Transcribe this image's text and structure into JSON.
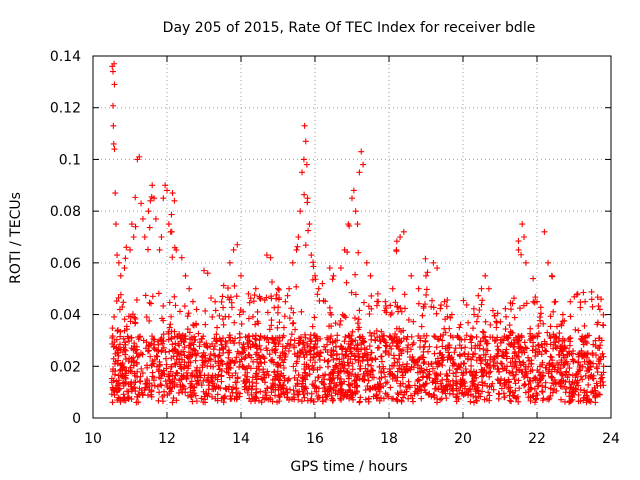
{
  "chart_data": {
    "type": "scatter",
    "title": "Day 205 of 2015, Rate Of TEC Index for receiver bdle",
    "xlabel": "GPS time / hours",
    "ylabel": "ROTI / TECUs",
    "xlim": [
      10,
      24
    ],
    "ylim": [
      0,
      0.14
    ],
    "x_ticks": [
      "10",
      "12",
      "14",
      "16",
      "18",
      "20",
      "22",
      "24"
    ],
    "y_ticks": [
      "0",
      "0.02",
      "0.04",
      "0.06",
      "0.08",
      "0.1",
      "0.12",
      "0.14"
    ],
    "grid": true,
    "marker": "plus",
    "color": "#ff0000",
    "data_range_x": [
      10.5,
      23.8
    ],
    "series": [
      {
        "points": [
          [
            10.52,
            0.136
          ],
          [
            10.54,
            0.134
          ],
          [
            10.57,
            0.137
          ],
          [
            10.58,
            0.129
          ],
          [
            10.55,
            0.113
          ],
          [
            10.56,
            0.106
          ],
          [
            10.58,
            0.104
          ],
          [
            10.6,
            0.087
          ],
          [
            10.62,
            0.075
          ],
          [
            10.65,
            0.063
          ],
          [
            10.7,
            0.06
          ],
          [
            10.75,
            0.055
          ],
          [
            10.85,
            0.058
          ],
          [
            10.9,
            0.066
          ],
          [
            11.0,
            0.065
          ],
          [
            11.05,
            0.075
          ],
          [
            11.1,
            0.07
          ],
          [
            11.15,
            0.074
          ],
          [
            11.2,
            0.1
          ],
          [
            11.25,
            0.101
          ],
          [
            11.3,
            0.083
          ],
          [
            11.35,
            0.077
          ],
          [
            11.4,
            0.07
          ],
          [
            11.5,
            0.08
          ],
          [
            11.55,
            0.084
          ],
          [
            11.6,
            0.09
          ],
          [
            11.65,
            0.085
          ],
          [
            11.7,
            0.077
          ],
          [
            11.8,
            0.065
          ],
          [
            11.85,
            0.07
          ],
          [
            11.9,
            0.085
          ],
          [
            11.95,
            0.09
          ],
          [
            12.0,
            0.088
          ],
          [
            12.05,
            0.075
          ],
          [
            12.1,
            0.072
          ],
          [
            12.15,
            0.087
          ],
          [
            12.2,
            0.084
          ],
          [
            12.25,
            0.065
          ],
          [
            12.4,
            0.062
          ],
          [
            12.5,
            0.055
          ],
          [
            12.6,
            0.05
          ],
          [
            12.7,
            0.045
          ],
          [
            12.8,
            0.042
          ],
          [
            13.0,
            0.057
          ],
          [
            13.1,
            0.056
          ],
          [
            13.3,
            0.045
          ],
          [
            13.5,
            0.047
          ],
          [
            13.7,
            0.06
          ],
          [
            13.8,
            0.065
          ],
          [
            13.9,
            0.067
          ],
          [
            14.0,
            0.055
          ],
          [
            14.2,
            0.048
          ],
          [
            14.4,
            0.05
          ],
          [
            14.5,
            0.047
          ],
          [
            14.7,
            0.063
          ],
          [
            14.8,
            0.062
          ],
          [
            15.0,
            0.05
          ],
          [
            15.2,
            0.045
          ],
          [
            15.3,
            0.05
          ],
          [
            15.4,
            0.06
          ],
          [
            15.5,
            0.065
          ],
          [
            15.55,
            0.07
          ],
          [
            15.6,
            0.08
          ],
          [
            15.65,
            0.095
          ],
          [
            15.7,
            0.1
          ],
          [
            15.72,
            0.113
          ],
          [
            15.75,
            0.107
          ],
          [
            15.78,
            0.098
          ],
          [
            15.8,
            0.085
          ],
          [
            15.85,
            0.075
          ],
          [
            15.9,
            0.063
          ],
          [
            16.0,
            0.055
          ],
          [
            16.1,
            0.05
          ],
          [
            16.2,
            0.052
          ],
          [
            16.4,
            0.058
          ],
          [
            16.5,
            0.055
          ],
          [
            16.7,
            0.058
          ],
          [
            16.8,
            0.065
          ],
          [
            16.9,
            0.075
          ],
          [
            17.0,
            0.085
          ],
          [
            17.05,
            0.088
          ],
          [
            17.1,
            0.08
          ],
          [
            17.15,
            0.075
          ],
          [
            17.2,
            0.095
          ],
          [
            17.25,
            0.103
          ],
          [
            17.3,
            0.098
          ],
          [
            17.4,
            0.06
          ],
          [
            17.5,
            0.055
          ],
          [
            17.7,
            0.048
          ],
          [
            17.9,
            0.045
          ],
          [
            18.1,
            0.05
          ],
          [
            18.2,
            0.065
          ],
          [
            18.3,
            0.07
          ],
          [
            18.4,
            0.072
          ],
          [
            18.6,
            0.055
          ],
          [
            18.8,
            0.05
          ],
          [
            19.0,
            0.055
          ],
          [
            19.2,
            0.06
          ],
          [
            19.3,
            0.058
          ],
          [
            19.5,
            0.045
          ],
          [
            19.7,
            0.04
          ],
          [
            19.9,
            0.035
          ],
          [
            20.1,
            0.032
          ],
          [
            20.3,
            0.04
          ],
          [
            20.5,
            0.05
          ],
          [
            20.6,
            0.055
          ],
          [
            20.7,
            0.05
          ],
          [
            20.9,
            0.035
          ],
          [
            21.1,
            0.03
          ],
          [
            21.3,
            0.033
          ],
          [
            21.5,
            0.065
          ],
          [
            21.6,
            0.075
          ],
          [
            21.65,
            0.07
          ],
          [
            21.7,
            0.06
          ],
          [
            21.9,
            0.045
          ],
          [
            22.0,
            0.045
          ],
          [
            22.2,
            0.072
          ],
          [
            22.3,
            0.06
          ],
          [
            22.4,
            0.055
          ],
          [
            22.5,
            0.045
          ],
          [
            22.7,
            0.04
          ],
          [
            22.9,
            0.045
          ],
          [
            23.1,
            0.048
          ],
          [
            23.3,
            0.045
          ],
          [
            23.5,
            0.043
          ],
          [
            23.7,
            0.042
          ],
          [
            23.75,
            0.03
          ],
          [
            23.8,
            0.02
          ]
        ]
      }
    ]
  }
}
